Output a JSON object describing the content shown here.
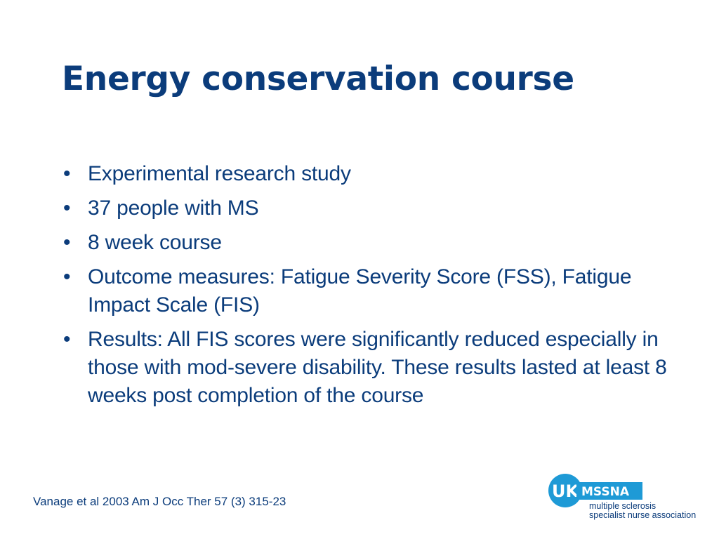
{
  "slide": {
    "title": "Energy conservation course",
    "bullets": [
      "Experimental research study",
      "37 people with MS",
      "8 week course",
      "Outcome measures: Fatigue Severity Score (FSS), Fatigue Impact Scale (FIS)",
      "Results: All FIS scores were significantly reduced especially in those with mod-severe disability. These results lasted at least 8 weeks post completion of the course"
    ],
    "bullet_symbol": "•",
    "citation": "Vanage et al 2003 Am J Occ Ther 57 (3) 315-23"
  },
  "logo": {
    "badge": "UK",
    "acronym": "MSSNA",
    "line1": "multiple sclerosis",
    "line2": "specialist nurse association"
  },
  "colors": {
    "text": "#0b3c7b",
    "logo_blue": "#1e9ad6",
    "background": "#ffffff"
  }
}
